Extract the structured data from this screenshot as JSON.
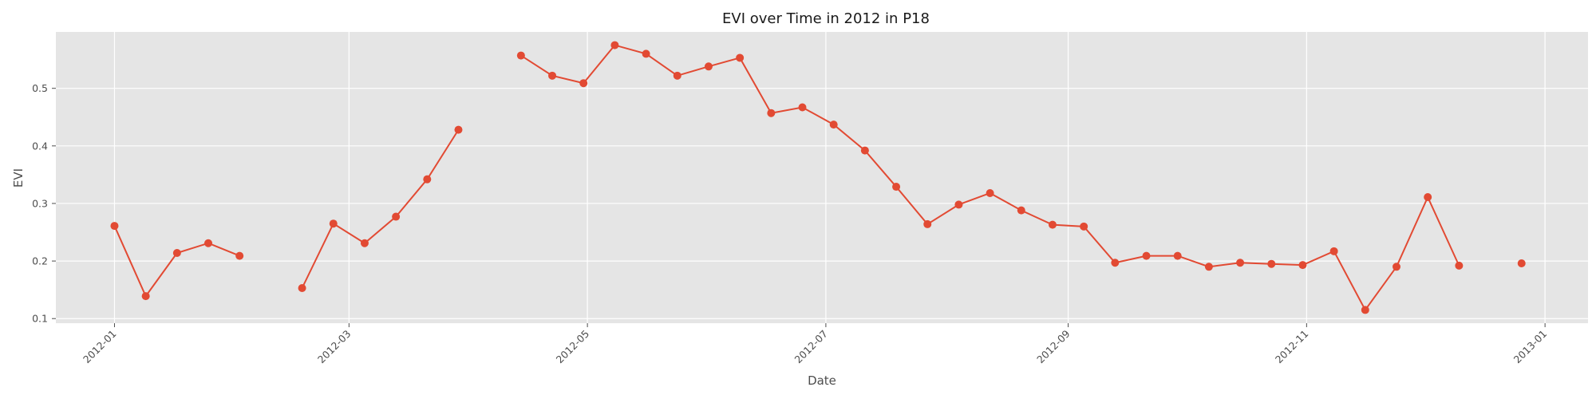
{
  "chart_data": {
    "type": "line",
    "title": "EVI over Time in 2012 in P18",
    "xlabel": "Date",
    "ylabel": "EVI",
    "x_ticks": [
      "2012-01",
      "2012-03",
      "2012-05",
      "2012-07",
      "2012-09",
      "2012-11",
      "2013-01"
    ],
    "y_ticks": [
      "0.1",
      "0.2",
      "0.3",
      "0.4",
      "0.5"
    ],
    "xlim": [
      "2011-12-17",
      "2013-01-12"
    ],
    "ylim": [
      0.092,
      0.598
    ],
    "grid": true,
    "legend": "none",
    "colors": {
      "series": "#E24A33",
      "plot_bg": "#E5E5E5",
      "grid": "#FFFFFF"
    },
    "series": [
      {
        "marker": "circle",
        "points": [
          {
            "x": "2012-01-01",
            "y": 0.261
          },
          {
            "x": "2012-01-09",
            "y": 0.139
          },
          {
            "x": "2012-01-17",
            "y": 0.214
          },
          {
            "x": "2012-01-25",
            "y": 0.231
          },
          {
            "x": "2012-02-02",
            "y": 0.209
          },
          {
            "x": "2012-02-10",
            "y": null
          },
          {
            "x": "2012-02-18",
            "y": 0.153
          },
          {
            "x": "2012-02-26",
            "y": 0.265
          },
          {
            "x": "2012-03-05",
            "y": 0.231
          },
          {
            "x": "2012-03-13",
            "y": 0.277
          },
          {
            "x": "2012-03-21",
            "y": 0.342
          },
          {
            "x": "2012-03-29",
            "y": 0.428
          },
          {
            "x": "2012-04-06",
            "y": null
          },
          {
            "x": "2012-04-14",
            "y": 0.557
          },
          {
            "x": "2012-04-22",
            "y": 0.522
          },
          {
            "x": "2012-04-30",
            "y": 0.509
          },
          {
            "x": "2012-05-08",
            "y": 0.575
          },
          {
            "x": "2012-05-16",
            "y": 0.56
          },
          {
            "x": "2012-05-24",
            "y": 0.522
          },
          {
            "x": "2012-06-01",
            "y": 0.538
          },
          {
            "x": "2012-06-09",
            "y": 0.553
          },
          {
            "x": "2012-06-17",
            "y": 0.457
          },
          {
            "x": "2012-06-25",
            "y": 0.467
          },
          {
            "x": "2012-07-03",
            "y": 0.437
          },
          {
            "x": "2012-07-11",
            "y": 0.392
          },
          {
            "x": "2012-07-19",
            "y": 0.329
          },
          {
            "x": "2012-07-27",
            "y": 0.264
          },
          {
            "x": "2012-08-04",
            "y": 0.298
          },
          {
            "x": "2012-08-12",
            "y": 0.318
          },
          {
            "x": "2012-08-20",
            "y": 0.288
          },
          {
            "x": "2012-08-28",
            "y": 0.263
          },
          {
            "x": "2012-09-05",
            "y": 0.26
          },
          {
            "x": "2012-09-13",
            "y": 0.197
          },
          {
            "x": "2012-09-21",
            "y": 0.209
          },
          {
            "x": "2012-09-29",
            "y": 0.209
          },
          {
            "x": "2012-10-07",
            "y": 0.19
          },
          {
            "x": "2012-10-15",
            "y": 0.197
          },
          {
            "x": "2012-10-23",
            "y": 0.195
          },
          {
            "x": "2012-10-31",
            "y": 0.193
          },
          {
            "x": "2012-11-08",
            "y": 0.217
          },
          {
            "x": "2012-11-16",
            "y": 0.115
          },
          {
            "x": "2012-11-24",
            "y": 0.19
          },
          {
            "x": "2012-12-02",
            "y": 0.311
          },
          {
            "x": "2012-12-10",
            "y": 0.192
          },
          {
            "x": "2012-12-18",
            "y": null
          },
          {
            "x": "2012-12-26",
            "y": 0.196
          }
        ]
      }
    ]
  }
}
